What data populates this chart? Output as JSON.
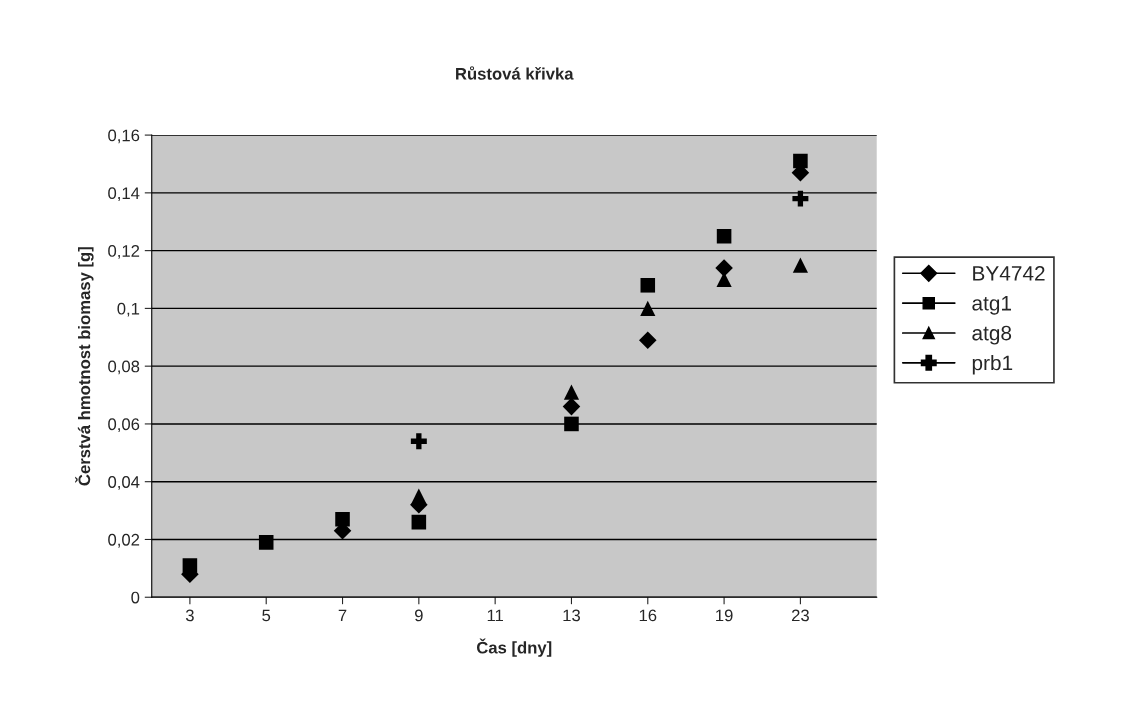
{
  "chart_data": {
    "type": "scatter",
    "title": "Růstová křivka",
    "xlabel": "Čas [dny]",
    "ylabel": "Čerstvá hmotnost biomasy [g]",
    "categories": [
      "3",
      "5",
      "7",
      "9",
      "11",
      "13",
      "16",
      "19",
      "23"
    ],
    "series": [
      {
        "name": "BY4742",
        "color": "#000000",
        "marker": "diamond",
        "values": [
          0.008,
          null,
          0.023,
          0.032,
          null,
          0.066,
          0.089,
          0.114,
          0.147
        ]
      },
      {
        "name": "atg1",
        "color": "#000000",
        "marker": "square",
        "values": [
          0.011,
          0.019,
          0.027,
          0.026,
          null,
          0.06,
          0.108,
          0.125,
          0.151
        ]
      },
      {
        "name": "atg8",
        "color": "#000000",
        "marker": "triangle",
        "values": [
          null,
          null,
          null,
          0.035,
          null,
          0.071,
          0.1,
          0.11,
          0.115
        ]
      },
      {
        "name": "prb1",
        "color": "#000000",
        "marker": "cross",
        "values": [
          null,
          null,
          null,
          0.054,
          null,
          null,
          null,
          null,
          0.138
        ]
      }
    ],
    "ylim": [
      0,
      0.16
    ],
    "yticks": [
      0,
      {
        "value": 0.02,
        "label": "0,02"
      },
      {
        "value": 0.04,
        "label": "0,04"
      },
      {
        "value": 0.06,
        "label": "0,06"
      },
      {
        "value": 0.08,
        "label": "0,08"
      },
      {
        "value": 0.1,
        "label": "0,1"
      },
      {
        "value": 0.12,
        "label": "0,12"
      },
      {
        "value": 0.14,
        "label": "0,14"
      },
      {
        "value": 0.16,
        "label": "0,16"
      }
    ],
    "grid": "y",
    "legend": "right"
  }
}
